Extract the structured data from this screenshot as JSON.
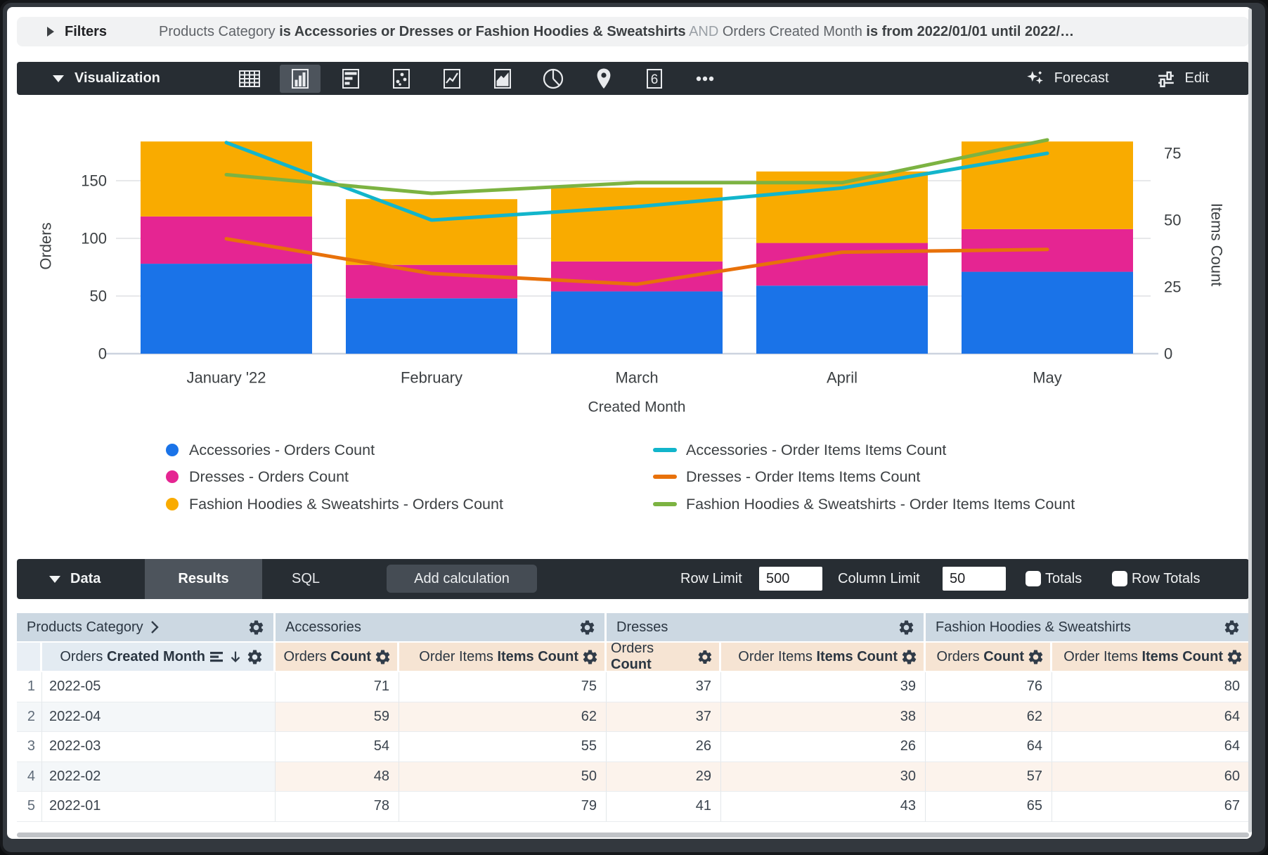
{
  "filters": {
    "label": "Filters",
    "segments": [
      {
        "text": "Products Category ",
        "style": "normal"
      },
      {
        "text": "is Accessories or Dresses or Fashion Hoodies & Sweatshirts",
        "style": "bold"
      },
      {
        "text": " AND ",
        "style": "muted"
      },
      {
        "text": "Orders Created Month ",
        "style": "normal"
      },
      {
        "text": "is from 2022/01/01 until 2022/…",
        "style": "bold"
      }
    ]
  },
  "viz_toolbar": {
    "label": "Visualization",
    "icons": [
      {
        "name": "table"
      },
      {
        "name": "column",
        "selected": true
      },
      {
        "name": "bar"
      },
      {
        "name": "scatter"
      },
      {
        "name": "line"
      },
      {
        "name": "area"
      },
      {
        "name": "pie"
      },
      {
        "name": "map"
      },
      {
        "name": "single-value",
        "label": "6"
      },
      {
        "name": "more"
      }
    ],
    "forecast_label": "Forecast",
    "edit_label": "Edit"
  },
  "chart_data": {
    "type": "bar",
    "subtype": "stacked-column-with-lines",
    "categories": [
      "January '22",
      "February",
      "March",
      "April",
      "May"
    ],
    "x_axis_label": "Created Month",
    "left_axis": {
      "label": "Orders",
      "ticks": [
        0,
        50,
        100,
        150
      ],
      "range": [
        0,
        225
      ]
    },
    "right_axis": {
      "label": "Items Count",
      "ticks": [
        0,
        25,
        50,
        75
      ],
      "range": [
        0,
        97
      ]
    },
    "series": [
      {
        "name": "Accessories - Orders Count",
        "type": "bar",
        "axis": "left",
        "color": "#1A73E8",
        "values": [
          78,
          48,
          54,
          59,
          71
        ]
      },
      {
        "name": "Dresses - Orders Count",
        "type": "bar",
        "axis": "left",
        "color": "#E52592",
        "values": [
          41,
          29,
          26,
          37,
          37
        ]
      },
      {
        "name": "Fashion Hoodies & Sweatshirts - Orders Count",
        "type": "bar",
        "axis": "left",
        "color": "#F9AB00",
        "values": [
          65,
          57,
          64,
          62,
          76
        ]
      },
      {
        "name": "Accessories - Order Items Items Count",
        "type": "line",
        "axis": "right",
        "color": "#12B5CB",
        "values": [
          79,
          50,
          55,
          62,
          75
        ]
      },
      {
        "name": "Dresses - Order Items Items Count",
        "type": "line",
        "axis": "right",
        "color": "#E8710A",
        "values": [
          43,
          30,
          26,
          38,
          39
        ]
      },
      {
        "name": "Fashion Hoodies & Sweatshirts - Order Items Items Count",
        "type": "line",
        "axis": "right",
        "color": "#7CB342",
        "values": [
          67,
          60,
          64,
          64,
          80
        ]
      }
    ],
    "legend_position": "bottom"
  },
  "data_toolbar": {
    "label": "Data",
    "tabs": [
      "Results",
      "SQL"
    ],
    "active_tab": "Results",
    "add_calculation_label": "Add calculation",
    "row_limit_label": "Row Limit",
    "row_limit_value": "500",
    "column_limit_label": "Column Limit",
    "column_limit_value": "50",
    "totals_label": "Totals",
    "totals_checked": false,
    "row_totals_label": "Row Totals",
    "row_totals_checked": false
  },
  "table": {
    "group_headers": [
      {
        "label": "Products Category",
        "chevron": true
      },
      {
        "label": "Accessories"
      },
      {
        "label": "Dresses"
      },
      {
        "label": "Fashion Hoodies & Sweatshirts"
      }
    ],
    "sub_headers": [
      {
        "prefix": "Orders ",
        "bold": "Created Month",
        "kind": "dimension"
      },
      {
        "prefix": "Orders ",
        "bold": "Count",
        "kind": "measure"
      },
      {
        "prefix": "Order Items ",
        "bold": "Items Count",
        "kind": "measure"
      },
      {
        "prefix": "Orders ",
        "bold": "Count",
        "kind": "measure"
      },
      {
        "prefix": "Order Items ",
        "bold": "Items Count",
        "kind": "measure"
      },
      {
        "prefix": "Orders ",
        "bold": "Count",
        "kind": "measure"
      },
      {
        "prefix": "Order Items ",
        "bold": "Items Count",
        "kind": "measure"
      }
    ],
    "rows": [
      {
        "index": "1",
        "month": "2022-05",
        "values": [
          "71",
          "75",
          "37",
          "39",
          "76",
          "80"
        ]
      },
      {
        "index": "2",
        "month": "2022-04",
        "values": [
          "59",
          "62",
          "37",
          "38",
          "62",
          "64"
        ]
      },
      {
        "index": "3",
        "month": "2022-03",
        "values": [
          "54",
          "55",
          "26",
          "26",
          "64",
          "64"
        ]
      },
      {
        "index": "4",
        "month": "2022-02",
        "values": [
          "48",
          "50",
          "29",
          "30",
          "57",
          "60"
        ]
      },
      {
        "index": "5",
        "month": "2022-01",
        "values": [
          "78",
          "79",
          "41",
          "43",
          "65",
          "67"
        ]
      }
    ]
  }
}
